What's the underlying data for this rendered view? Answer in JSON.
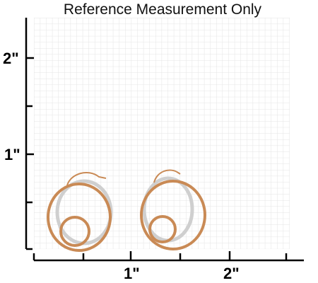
{
  "title": "Reference Measurement Only",
  "y_axis": {
    "labels": [
      "2\"",
      "1\""
    ]
  },
  "x_axis": {
    "labels": [
      "1\"",
      "2\""
    ]
  }
}
